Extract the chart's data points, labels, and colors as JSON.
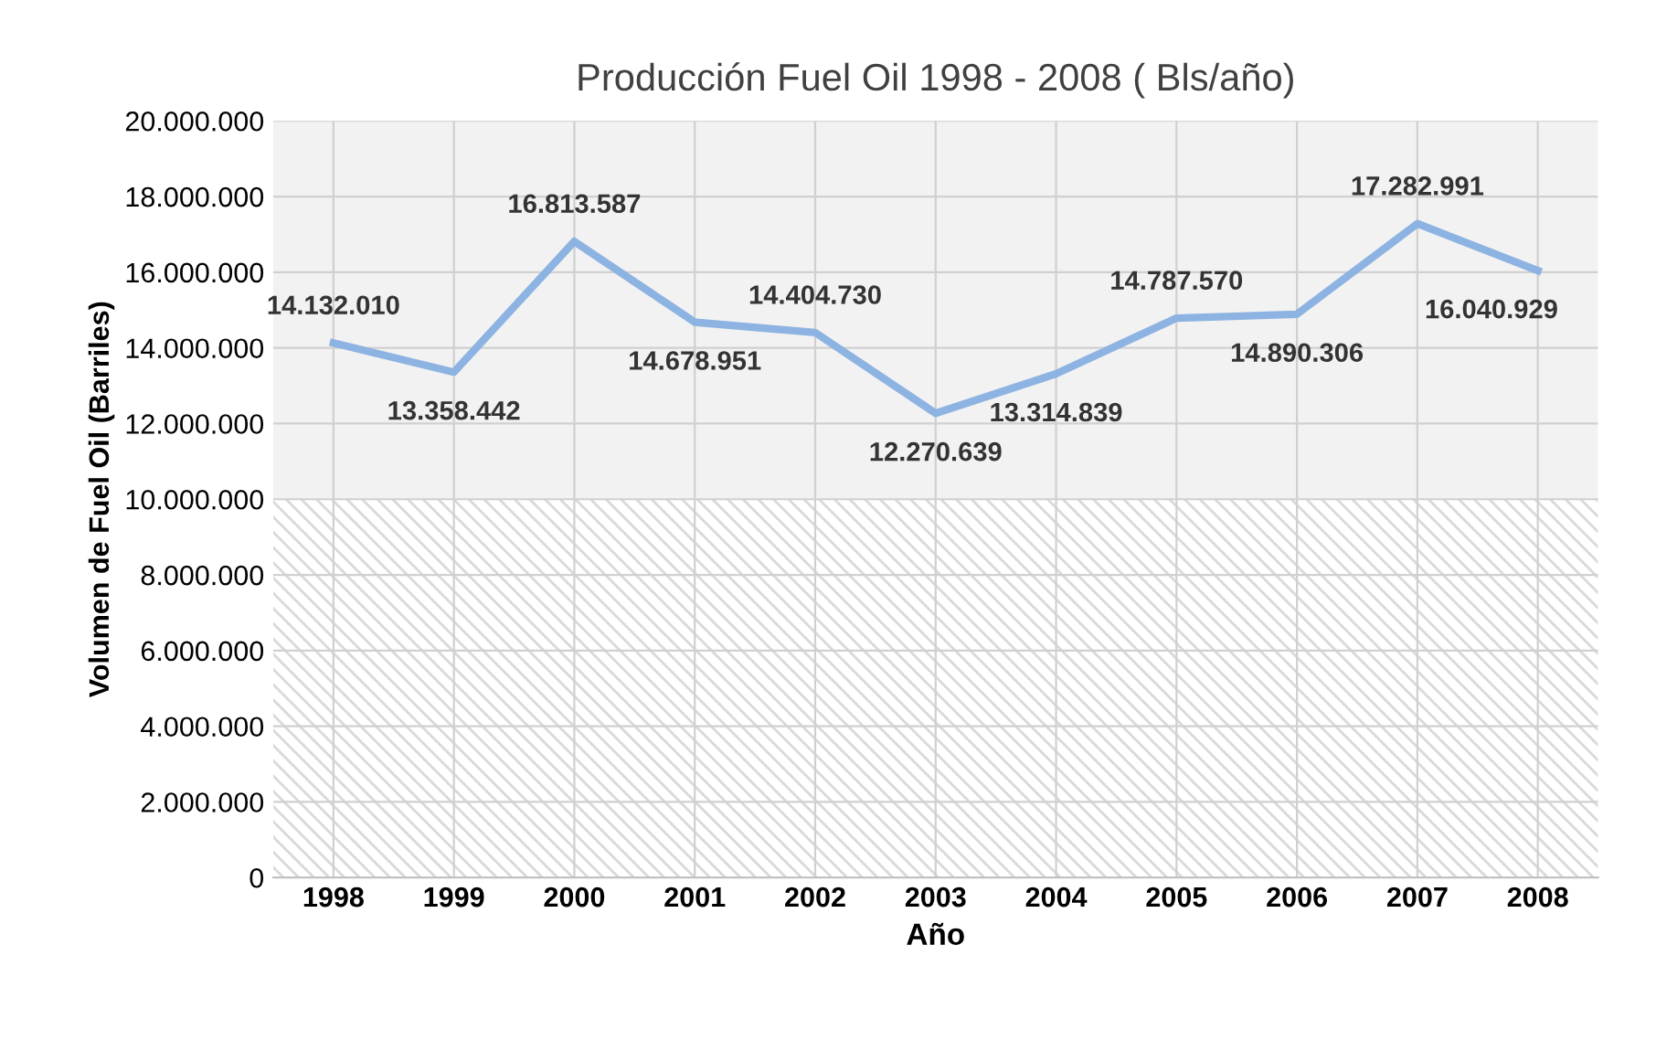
{
  "chart_data": {
    "type": "line",
    "title": "Producción Fuel Oil 1998 - 2008 ( Bls/año)",
    "xlabel": "Año",
    "ylabel": "Volumen de Fuel Oil (Barriles)",
    "categories": [
      "1998",
      "1999",
      "2000",
      "2001",
      "2002",
      "2003",
      "2004",
      "2005",
      "2006",
      "2007",
      "2008"
    ],
    "series": [
      {
        "color": "#8db3e2",
        "values": [
          14132010,
          13358442,
          16813587,
          14678951,
          14404730,
          12270639,
          13314839,
          14787570,
          14890306,
          17282991,
          16040929
        ]
      }
    ],
    "value_labels": [
      "14.132.010",
      "13.358.442",
      "16.813.587",
      "14.678.951",
      "14.404.730",
      "12.270.639",
      "13.314.839",
      "14.787.570",
      "14.890.306",
      "17.282.991",
      "16.040.929"
    ],
    "ylim": [
      0,
      20000000
    ],
    "yticks": [
      0,
      {
        "value": 2000000,
        "label": "2.000.000"
      },
      {
        "value": 4000000,
        "label": "4.000.000"
      },
      {
        "value": 6000000,
        "label": "6.000.000"
      },
      {
        "value": 8000000,
        "label": "8.000.000"
      },
      {
        "value": 10000000,
        "label": "10.000.000"
      },
      {
        "value": 12000000,
        "label": "12.000.000"
      },
      {
        "value": 14000000,
        "label": "14.000.000"
      },
      {
        "value": 16000000,
        "label": "16.000.000"
      },
      {
        "value": 18000000,
        "label": "18.000.000"
      },
      {
        "value": 20000000,
        "label": "20.000.000"
      }
    ],
    "bands": [
      {
        "axis": "y",
        "from": 0,
        "to": 10000000,
        "color": "#d9d9d9"
      },
      {
        "axis": "y",
        "from": 10000000,
        "to": 20000000,
        "color": "#f2f2f2"
      }
    ],
    "grid": true,
    "marker": "none",
    "line_style": "solid"
  }
}
